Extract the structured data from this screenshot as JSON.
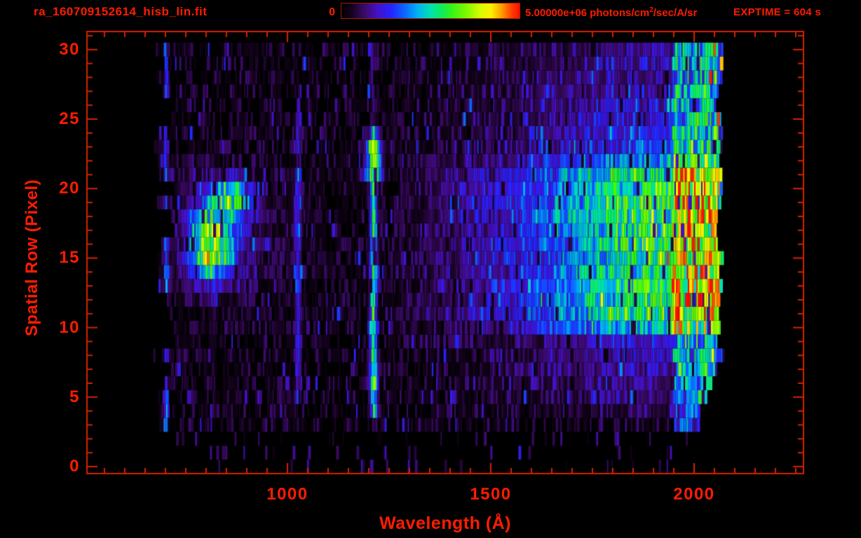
{
  "header": {
    "title": "ra_160709152614_hisb_lin.fit",
    "colorbar_min_label": "0",
    "units_prefix": "5.00000e+06 photons/cm",
    "units_sup": "2",
    "units_suffix": "/sec/A/sr",
    "exptime": "EXPTIME = 604 s"
  },
  "chart_data": {
    "type": "heatmap",
    "title": "ra_160709152614_hisb_lin.fit",
    "xlabel": "Wavelength (Å)",
    "ylabel": "Spatial Row (Pixel)",
    "xlim": [
      507,
      2269
    ],
    "ylim": [
      -0.5,
      31.3
    ],
    "x_ticks": [
      1000,
      1500,
      2000
    ],
    "x_minor_tick_interval": 50,
    "y_ticks": [
      0,
      5,
      10,
      15,
      20,
      25,
      30
    ],
    "y_minor_tick_interval": 1,
    "grid": false,
    "exposure_time_s": 604,
    "colorbar": {
      "min": 0,
      "max": 5000000,
      "min_label": "0",
      "max_label": "5.00000e+06",
      "units": "photons/cm^2/sec/A/sr",
      "position": "top",
      "colormap_stops": [
        [
          0.0,
          "#000000"
        ],
        [
          0.06,
          "#16031f"
        ],
        [
          0.13,
          "#3b0a68"
        ],
        [
          0.2,
          "#4410c4"
        ],
        [
          0.28,
          "#2424ff"
        ],
        [
          0.36,
          "#0a6bff"
        ],
        [
          0.43,
          "#00b4f0"
        ],
        [
          0.5,
          "#00e0b0"
        ],
        [
          0.56,
          "#0ceb60"
        ],
        [
          0.62,
          "#36f218"
        ],
        [
          0.7,
          "#7df800"
        ],
        [
          0.78,
          "#d8fc00"
        ],
        [
          0.84,
          "#fdf000"
        ],
        [
          0.9,
          "#ff9c00"
        ],
        [
          0.95,
          "#ff4600"
        ],
        [
          1.0,
          "#ff0e00"
        ]
      ]
    },
    "colors": {
      "text": "#ff1c00",
      "axis": "#d42300",
      "background": "#000000"
    },
    "data_extent": {
      "wavelength_min": 670,
      "wavelength_max": 2074,
      "row_min": 0,
      "row_max": 30
    },
    "features": [
      {
        "id": "left-edge-emission-line",
        "type": "vline",
        "wavelength": 702,
        "sigma": 4,
        "rows": [
          3,
          30.5
        ],
        "intensity": 0.27
      },
      {
        "id": "lyman-beta-emission-line",
        "type": "vline",
        "wavelength": 1026,
        "sigma": 5,
        "rows": [
          4.5,
          25
        ],
        "intensity": 0.22
      },
      {
        "id": "lyman-alpha-emission-line",
        "type": "vline",
        "wavelength": 1212,
        "sigma": 6,
        "rows": [
          3.3,
          24.3
        ],
        "intensity": 0.46,
        "enhancements": [
          {
            "rows": [
              20.7,
              23.9
            ],
            "intensity": 0.62,
            "sigma": 13
          },
          {
            "rows": [
              9.2,
              10.8
            ],
            "intensity": 0.56,
            "sigma": 8
          },
          {
            "rows": [
              5.5,
              7.3
            ],
            "intensity": 0.52,
            "sigma": 7
          }
        ],
        "faint": {
          "rows": [
            24.3,
            30.5
          ],
          "intensity": 0.1
        }
      },
      {
        "id": "short-wavelength-arc-upper",
        "type": "blob",
        "wavelength": 858,
        "row": 19.4,
        "r_wavelength": 50,
        "r_row": 1.15,
        "intensity": 0.5
      },
      {
        "id": "short-wavelength-arc-middle",
        "type": "blob",
        "wavelength": 818,
        "row": 17.4,
        "r_wavelength": 58,
        "r_row": 1.25,
        "intensity": 0.33
      },
      {
        "id": "short-wavelength-arc-lower",
        "type": "blob",
        "wavelength": 812,
        "row": 15.1,
        "r_wavelength": 50,
        "r_row": 1.8,
        "intensity": 0.54
      },
      {
        "id": "short-wavelength-arc-halo",
        "type": "blob",
        "wavelength": 832,
        "row": 16.8,
        "r_wavelength": 115,
        "r_row": 3.9,
        "intensity": 0.15
      },
      {
        "id": "long-wavelength-continuum",
        "type": "ramp",
        "points": [
          [
            1240,
            0
          ],
          [
            1400,
            0.1
          ],
          [
            1550,
            0.22
          ],
          [
            1700,
            0.4
          ],
          [
            1800,
            0.55
          ],
          [
            1880,
            0.62
          ],
          [
            2040,
            0.62
          ],
          [
            2058,
            0.48
          ],
          [
            2075,
            0
          ]
        ],
        "row_envelope": [
          [
            2.5,
            0
          ],
          [
            5,
            0.2
          ],
          [
            9,
            0.35
          ],
          [
            10.3,
            0.92
          ],
          [
            11.5,
            1.05
          ],
          [
            14,
            0.95
          ],
          [
            17,
            1.0
          ],
          [
            19,
            1.08
          ],
          [
            21.3,
            0.92
          ],
          [
            22.5,
            0.52
          ],
          [
            25,
            0.4
          ],
          [
            28,
            0.32
          ],
          [
            30.5,
            0.26
          ]
        ]
      },
      {
        "id": "red-edge-band",
        "type": "band",
        "wavelength_range": [
          1948,
          2070
        ],
        "rows": [
          2.8,
          30.5
        ],
        "intensity": 0.3
      },
      {
        "id": "red-edge-hot-speckles",
        "type": "speckle",
        "wavelength_range": [
          2040,
          2072
        ],
        "rows": [
          2.8,
          30.5
        ],
        "probability": 0.2,
        "intensity_range": [
          0.6,
          1.0
        ]
      },
      {
        "id": "bottom-right-blue-streaks",
        "type": "vline",
        "wavelength": 2064,
        "sigma": 5,
        "rows": [
          -0.4,
          3
        ],
        "intensity": 0.26
      }
    ],
    "noise": {
      "seed": 77,
      "fill_by_row": [
        [
          0,
          0.035
        ],
        [
          2,
          0.04
        ],
        [
          3,
          0.55
        ],
        [
          6,
          0.62
        ],
        [
          9,
          0.7
        ],
        [
          10,
          0.78
        ],
        [
          21,
          0.78
        ],
        [
          24,
          0.64
        ],
        [
          27,
          0.54
        ],
        [
          30,
          0.5
        ]
      ],
      "row_start_wavelength": [
        668,
        726
      ],
      "row_end_wavelength": [
        2052,
        2074
      ],
      "bottom_taper": {
        "below_row": 8,
        "per_row_angstrom": 11
      },
      "dark_dropout_probability": 0.05,
      "blue_pop_probability": 0.06
    }
  }
}
